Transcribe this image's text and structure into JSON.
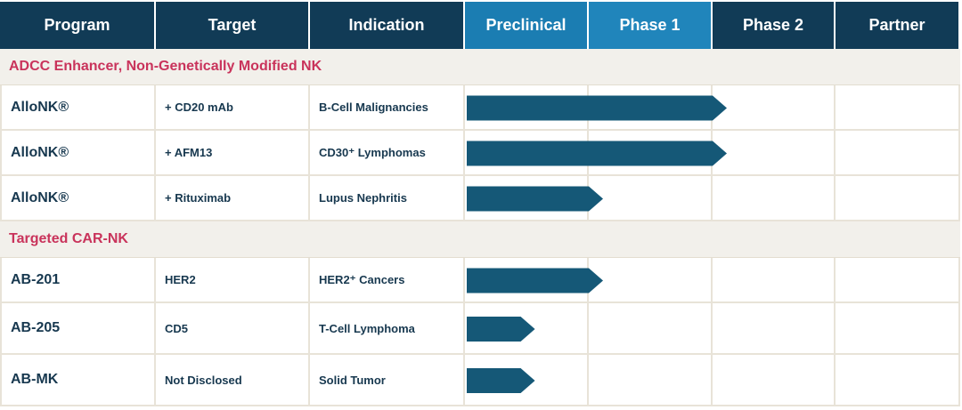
{
  "header": {
    "columns": [
      "Program",
      "Target",
      "Indication",
      "Preclinical",
      "Phase 1",
      "Phase 2",
      "Partner"
    ]
  },
  "sections": [
    {
      "title": "ADCC Enhancer, Non-Genetically Modified NK",
      "rows": [
        {
          "program": "AlloNK®",
          "target": "+ CD20 mAb",
          "indication": "B-Cell Malignancies",
          "progress": 2
        },
        {
          "program": "AlloNK®",
          "target": "+ AFM13",
          "indication": "CD30⁺ Lymphomas",
          "progress": 2
        },
        {
          "program": "AlloNK®",
          "target": "+ Rituximab",
          "indication": "Lupus Nephritis",
          "progress": 1
        }
      ]
    },
    {
      "title": "Targeted CAR-NK",
      "rows": [
        {
          "program": "AB-201",
          "target": "HER2",
          "indication": "HER2⁺ Cancers",
          "progress": 1
        },
        {
          "program": "AB-205",
          "target": "CD5",
          "indication": "T-Cell Lymphoma",
          "progress": 0.45
        },
        {
          "program": "AB-MK",
          "target": "Not Disclosed",
          "indication": "Solid Tumor",
          "progress": 0.45
        }
      ]
    }
  ]
}
